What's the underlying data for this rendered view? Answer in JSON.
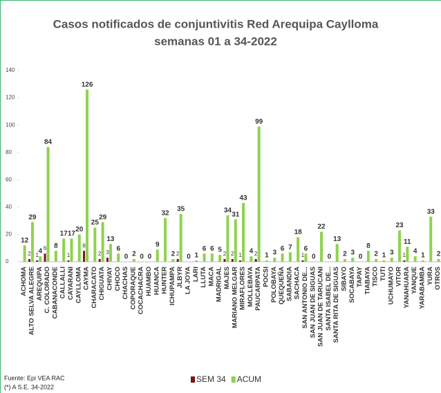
{
  "chart_data": {
    "type": "bar",
    "title": "Casos notificados de conjuntivitis Red Arequipa Caylloma",
    "subtitle": "semanas 01 a 34-2022",
    "categories": [
      "ACHOMA",
      "ALTO SELVA ALEGRE",
      "AREQUIPA",
      "C. COLORADO",
      "CABANACONDE",
      "CALLALLI",
      "CAYARANI",
      "CAYLLOMA",
      "CAYMA",
      "CHARACATO",
      "CHIGUATA",
      "CHIVAY",
      "CHOCO",
      "CHACHAS",
      "COPORAQUE",
      "COCACHACRA",
      "HUAMBO",
      "HUANCA",
      "HUNTER",
      "ICHUPAMPA",
      "JLBYR",
      "LA JOYA",
      "LARI",
      "LLUTA",
      "MACA",
      "MADRIGAL",
      "MAJES",
      "MARIANO MELGAR",
      "MIRAFLORES",
      "MOLLEBAYA",
      "PAUCARPATA",
      "POCSI",
      "POLOBAYA",
      "QUEQUEÑA",
      "SABANDIA",
      "SACHACA",
      "SAN ANTONIO DE...",
      "SAN JUAN DE SIGUAS",
      "SAN JUAN DE TARUCANI",
      "SANTA ISABEL DE...",
      "SANTA RITA DE SIGUAS",
      "SIBAYO",
      "SOCABAYA",
      "TAPAY",
      "TIABAYA",
      "TISCO",
      "TUTI",
      "UCHUMAYO",
      "VITOR",
      "YANAHUARA",
      "YANQUE",
      "YARABAMBA",
      "YURA",
      "OTROS"
    ],
    "series": [
      {
        "name": "SEM 34",
        "color": "#7b1515",
        "values": [
          null,
          2,
          1,
          6,
          null,
          null,
          1,
          null,
          8,
          null,
          2,
          3,
          null,
          null,
          null,
          null,
          null,
          null,
          null,
          null,
          2,
          null,
          null,
          null,
          null,
          null,
          2,
          2,
          1,
          null,
          2,
          null,
          null,
          null,
          null,
          null,
          1,
          null,
          null,
          null,
          null,
          null,
          null,
          null,
          null,
          null,
          null,
          null,
          null,
          1,
          null,
          null,
          null,
          null
        ]
      },
      {
        "name": "ACUM",
        "color": "#8fd24f",
        "values": [
          12,
          29,
          4,
          84,
          8,
          17,
          17,
          20,
          126,
          25,
          29,
          13,
          6,
          0,
          2,
          0,
          0,
          9,
          32,
          2,
          35,
          0,
          1,
          6,
          6,
          5,
          34,
          31,
          43,
          4,
          99,
          1,
          3,
          6,
          7,
          18,
          6,
          0,
          22,
          0,
          13,
          2,
          3,
          0,
          8,
          2,
          1,
          3,
          23,
          11,
          4,
          1,
          33,
          2
        ]
      }
    ],
    "ylim": [
      0,
      140
    ],
    "yticks": [
      0,
      20,
      40,
      60,
      80,
      100,
      120,
      140
    ],
    "notes": [
      "Fuente: Epi VEA RAC",
      "(*) A S.E. 34-2022"
    ]
  }
}
